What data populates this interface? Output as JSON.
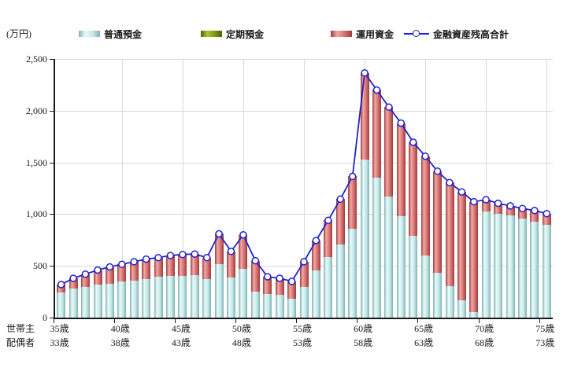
{
  "unit_label": "(万円)",
  "legend": [
    {
      "label": "普通預金",
      "type": "bar",
      "color_key": "deposit"
    },
    {
      "label": "定期預金",
      "type": "bar",
      "color_key": "time_deposit"
    },
    {
      "label": "運用資金",
      "type": "bar",
      "color_key": "invest"
    },
    {
      "label": "金融資産残高合計",
      "type": "line",
      "color_key": "line"
    }
  ],
  "colors": {
    "deposit_dark": "#7fb2b4",
    "deposit_light": "#eafafa",
    "deposit_mid": "#c7e9e9",
    "invest_dark": "#9e3c3c",
    "invest_light": "#f0aaa6",
    "invest_mid": "#d57070",
    "time_deposit_dark": "#4a6206",
    "time_deposit_light": "#a9c42a",
    "time_deposit_mid": "#7e9a14",
    "line": "#2222cc",
    "grid": "#d9d9d9",
    "axis": "#1a1a1a"
  },
  "y_axis": {
    "tick_labels": [
      "0",
      "500",
      "1,000",
      "1,500",
      "2,000",
      "2,500"
    ],
    "tick_values": [
      0,
      500,
      1000,
      1500,
      2000,
      2500
    ]
  },
  "x_axis": {
    "row1_label": "世帯主",
    "row2_label": "配偶者",
    "tick_labels_row1": [
      "35歳",
      "40歳",
      "45歳",
      "50歳",
      "55歳",
      "60歳",
      "65歳",
      "70歳",
      "75歳"
    ],
    "tick_labels_row2": [
      "33歳",
      "38歳",
      "43歳",
      "48歳",
      "53歳",
      "58歳",
      "63歳",
      "68歳",
      "73歳"
    ],
    "labeled_bar_indices": [
      0,
      5,
      10,
      15,
      20,
      25,
      30,
      35,
      40
    ]
  },
  "chart_data": {
    "type": "bar",
    "subtype": "stacked-bars-with-total-line",
    "x_head_age": [
      35,
      36,
      37,
      38,
      39,
      40,
      41,
      42,
      43,
      44,
      45,
      46,
      47,
      48,
      49,
      50,
      51,
      52,
      53,
      54,
      55,
      56,
      57,
      58,
      59,
      60,
      61,
      62,
      63,
      64,
      65,
      66,
      67,
      68,
      69,
      70,
      71,
      72,
      73,
      74,
      75
    ],
    "x_spouse_age": [
      33,
      34,
      35,
      36,
      37,
      38,
      39,
      40,
      41,
      42,
      43,
      44,
      45,
      46,
      47,
      48,
      49,
      50,
      51,
      52,
      53,
      54,
      55,
      56,
      57,
      58,
      59,
      60,
      61,
      62,
      63,
      64,
      65,
      66,
      67,
      68,
      69,
      70,
      71,
      72,
      73
    ],
    "series": [
      {
        "name": "普通預金",
        "type": "bar",
        "values": [
          240,
          280,
          300,
          320,
          330,
          350,
          355,
          375,
          395,
          400,
          405,
          410,
          370,
          520,
          390,
          470,
          250,
          230,
          220,
          180,
          295,
          460,
          585,
          705,
          860,
          1530,
          1350,
          1170,
          980,
          790,
          600,
          430,
          305,
          165,
          50,
          1030,
          1005,
          985,
          955,
          930,
          895
        ]
      },
      {
        "name": "定期預金",
        "type": "bar",
        "values": [
          0,
          0,
          0,
          0,
          0,
          0,
          0,
          0,
          0,
          0,
          0,
          0,
          0,
          0,
          0,
          0,
          0,
          0,
          0,
          0,
          0,
          0,
          0,
          0,
          0,
          0,
          0,
          0,
          0,
          0,
          0,
          0,
          0,
          0,
          0,
          0,
          0,
          0,
          0,
          0,
          0
        ]
      },
      {
        "name": "運用資金",
        "type": "bar",
        "values": [
          80,
          100,
          120,
          140,
          160,
          165,
          185,
          190,
          185,
          200,
          205,
          205,
          210,
          290,
          250,
          330,
          300,
          165,
          160,
          170,
          245,
          285,
          355,
          440,
          505,
          835,
          850,
          865,
          900,
          905,
          960,
          985,
          1000,
          1050,
          1070,
          110,
          100,
          95,
          100,
          105,
          110
        ]
      },
      {
        "name": "金融資産残高合計",
        "type": "line",
        "values": [
          320,
          380,
          420,
          460,
          490,
          515,
          540,
          565,
          580,
          600,
          610,
          615,
          580,
          810,
          640,
          800,
          550,
          395,
          380,
          350,
          540,
          745,
          940,
          1145,
          1365,
          2365,
          2200,
          2035,
          1880,
          1695,
          1560,
          1415,
          1305,
          1215,
          1120,
          1140,
          1105,
          1080,
          1055,
          1035,
          1005
        ]
      }
    ],
    "ylabel": "(万円)",
    "ylim": [
      0,
      2500
    ],
    "y_tick_step": 500,
    "grid": true,
    "legend_position": "top"
  }
}
